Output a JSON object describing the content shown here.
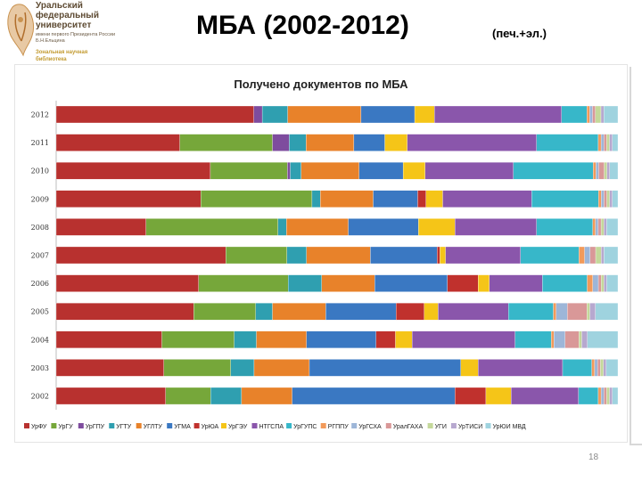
{
  "header": {
    "title": "МБА (2002-2012)",
    "subtitle": "(печ.+эл.)"
  },
  "logo": {
    "name": "Уральский федеральный университет",
    "dedication": "имени первого Президента России Б.Н.Ельцина",
    "library": "Зональная научная библиотека"
  },
  "page_number": "18",
  "colors": {
    "series": [
      "#b8312f",
      "#76a73a",
      "#7e4c9e",
      "#2f9fb0",
      "#e8822a",
      "#3a78c2",
      "#c0312d",
      "#f5c518",
      "#8a56ab",
      "#37b7c9",
      "#f29a5a",
      "#9db6d8",
      "#d99898",
      "#c4d89a",
      "#b7a8cf",
      "#9fd3df",
      "#f7c6a0",
      "#c5d5e8"
    ]
  },
  "chart_data": {
    "type": "bar",
    "orientation": "horizontal",
    "stacked": "percent",
    "title": "Получено документов по МБА",
    "xlabel": "",
    "ylabel": "",
    "legend_position": "bottom",
    "grid": false,
    "categories": [
      "2012",
      "2011",
      "2010",
      "2009",
      "2008",
      "2007",
      "2006",
      "2005",
      "2004",
      "2003",
      "2002"
    ],
    "series": [
      {
        "name": "УрФУ",
        "values": [
          35.0,
          22.0,
          28.0,
          26.0,
          16.0,
          30.5,
          25.5,
          24.5,
          19.0,
          18.5,
          19.5
        ]
      },
      {
        "name": "УрГУ",
        "values": [
          0.0,
          16.5,
          14.0,
          20.0,
          23.5,
          11.0,
          16.0,
          11.0,
          13.0,
          11.5,
          8.0
        ]
      },
      {
        "name": "УрГПУ",
        "values": [
          1.5,
          3.0,
          0.5,
          0.0,
          0.0,
          0.0,
          0.0,
          0.0,
          0.0,
          0.0,
          0.0
        ]
      },
      {
        "name": "УГТУ",
        "values": [
          4.5,
          3.0,
          2.0,
          1.5,
          1.5,
          3.5,
          6.0,
          3.0,
          4.0,
          4.0,
          5.5
        ]
      },
      {
        "name": "УГЛТУ",
        "values": [
          13.0,
          8.5,
          10.5,
          9.5,
          11.0,
          11.5,
          9.5,
          9.5,
          9.0,
          9.5,
          9.0
        ]
      },
      {
        "name": "УГМА",
        "values": [
          9.5,
          5.5,
          8.0,
          8.0,
          12.5,
          12.0,
          13.0,
          12.5,
          12.5,
          26.0,
          29.0
        ]
      },
      {
        "name": "УрЮА",
        "values": [
          0.0,
          0.0,
          0.0,
          1.5,
          0.0,
          0.5,
          5.5,
          5.0,
          3.5,
          0.0,
          5.5
        ]
      },
      {
        "name": "УрГЭУ",
        "values": [
          3.5,
          4.0,
          4.0,
          3.0,
          6.5,
          1.0,
          2.0,
          2.5,
          3.0,
          3.0,
          4.5
        ]
      },
      {
        "name": "НТГСПА",
        "values": [
          22.5,
          23.0,
          16.0,
          16.0,
          14.5,
          13.5,
          9.5,
          12.5,
          18.5,
          14.5,
          12.0
        ]
      },
      {
        "name": "УрГУПС",
        "values": [
          4.5,
          11.0,
          14.5,
          12.0,
          10.0,
          10.5,
          8.0,
          8.0,
          6.5,
          5.0,
          3.5
        ]
      },
      {
        "name": "РГППУ",
        "values": [
          0.5,
          0.5,
          0.5,
          0.5,
          0.5,
          1.0,
          1.0,
          0.5,
          0.5,
          0.5,
          0.5
        ]
      },
      {
        "name": "УрГСХА",
        "values": [
          0.5,
          0.5,
          0.5,
          0.5,
          0.5,
          1.0,
          1.0,
          2.0,
          2.0,
          0.5,
          0.5
        ]
      },
      {
        "name": "УралГАХА",
        "values": [
          0.5,
          0.5,
          1.0,
          0.5,
          0.5,
          1.0,
          0.5,
          3.5,
          2.5,
          0.5,
          0.5
        ]
      },
      {
        "name": "УГИ",
        "values": [
          1.0,
          0.5,
          0.5,
          0.5,
          0.5,
          1.0,
          0.5,
          0.5,
          0.5,
          0.5,
          0.5
        ]
      },
      {
        "name": "УрТИСИ",
        "values": [
          0.5,
          0.5,
          0.5,
          0.5,
          0.5,
          0.5,
          0.5,
          1.0,
          1.0,
          0.5,
          0.5
        ]
      },
      {
        "name": "УрЮИ МВД",
        "values": [
          2.5,
          1.0,
          1.5,
          1.0,
          2.0,
          2.5,
          2.0,
          4.0,
          5.5,
          2.0,
          1.0
        ]
      }
    ]
  }
}
